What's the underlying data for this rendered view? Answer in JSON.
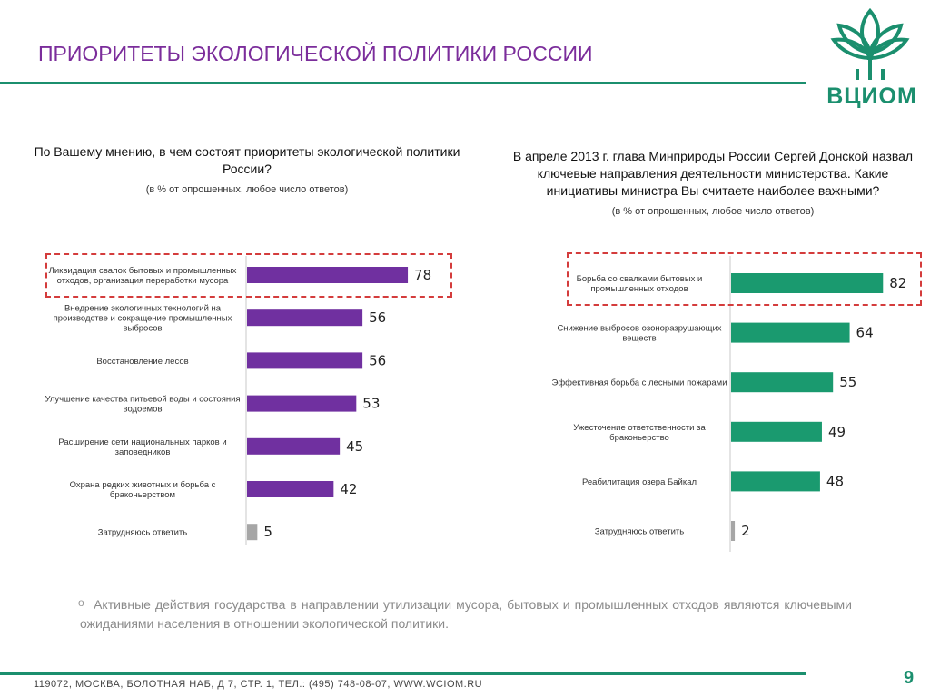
{
  "slide": {
    "title": "ПРИОРИТЕТЫ ЭКОЛОГИЧЕСКОЙ ПОЛИТИКИ РОССИИ",
    "logo_text": "ВЦИОМ",
    "bottom_note": "Активные действия государства в направлении утилизации мусора, бытовых и промышленных отходов являются ключевыми ожиданиями населения в отношении экологической политики.",
    "bullet": "o",
    "footer": "119072, МОСКВА, БОЛОТНАЯ НАБ, Д 7, СТР. 1, ТЕЛ.: (495) 748-08-07, WWW.WCIOM.RU",
    "page_number": "9",
    "colors": {
      "accent_green": "#1b8f6e",
      "title_purple": "#7b2d9b",
      "bar_purple": "#7030a0",
      "bar_green": "#1a9a6f",
      "bar_gray": "#a6a6a6",
      "highlight": "#d43c3c"
    }
  },
  "chart_data": [
    {
      "type": "bar",
      "orientation": "horizontal",
      "title": "По Вашему мнению, в чем состоят приоритеты экологической политики России?",
      "subtitle": "(в % от опрошенных, любое число ответов)",
      "categories": [
        "Ликвидация свалок бытовых и промышленных отходов, организация переработки мусора",
        "Внедрение экологичных технологий на производстве и сокращение промышленных выбросов",
        "Восстановление лесов",
        "Улучшение качества питьевой воды и состояния водоемов",
        "Расширение сети национальных парков и заповедников",
        "Охрана редких животных и борьба с браконьерством",
        "Затрудняюсь ответить"
      ],
      "values": [
        78,
        56,
        56,
        53,
        45,
        42,
        5
      ],
      "highlighted_index": 0
    },
    {
      "type": "bar",
      "orientation": "horizontal",
      "title": "В апреле 2013 г. глава Минприроды России Сергей Донской назвал ключевые направления деятельности министерства. Какие инициативы министра Вы считаете наиболее важными?",
      "subtitle": "(в % от опрошенных, любое число ответов)",
      "categories": [
        "Борьба со свалками бытовых и промышленных отходов",
        "Снижение выбросов озоноразрушающих веществ",
        "Эффективная борьба с лесными пожарами",
        "Ужесточение ответственности за браконьерство",
        "Реабилитация озера Байкал",
        "Затрудняюсь ответить"
      ],
      "values": [
        82,
        64,
        55,
        49,
        48,
        2
      ],
      "highlighted_index": 0
    }
  ]
}
